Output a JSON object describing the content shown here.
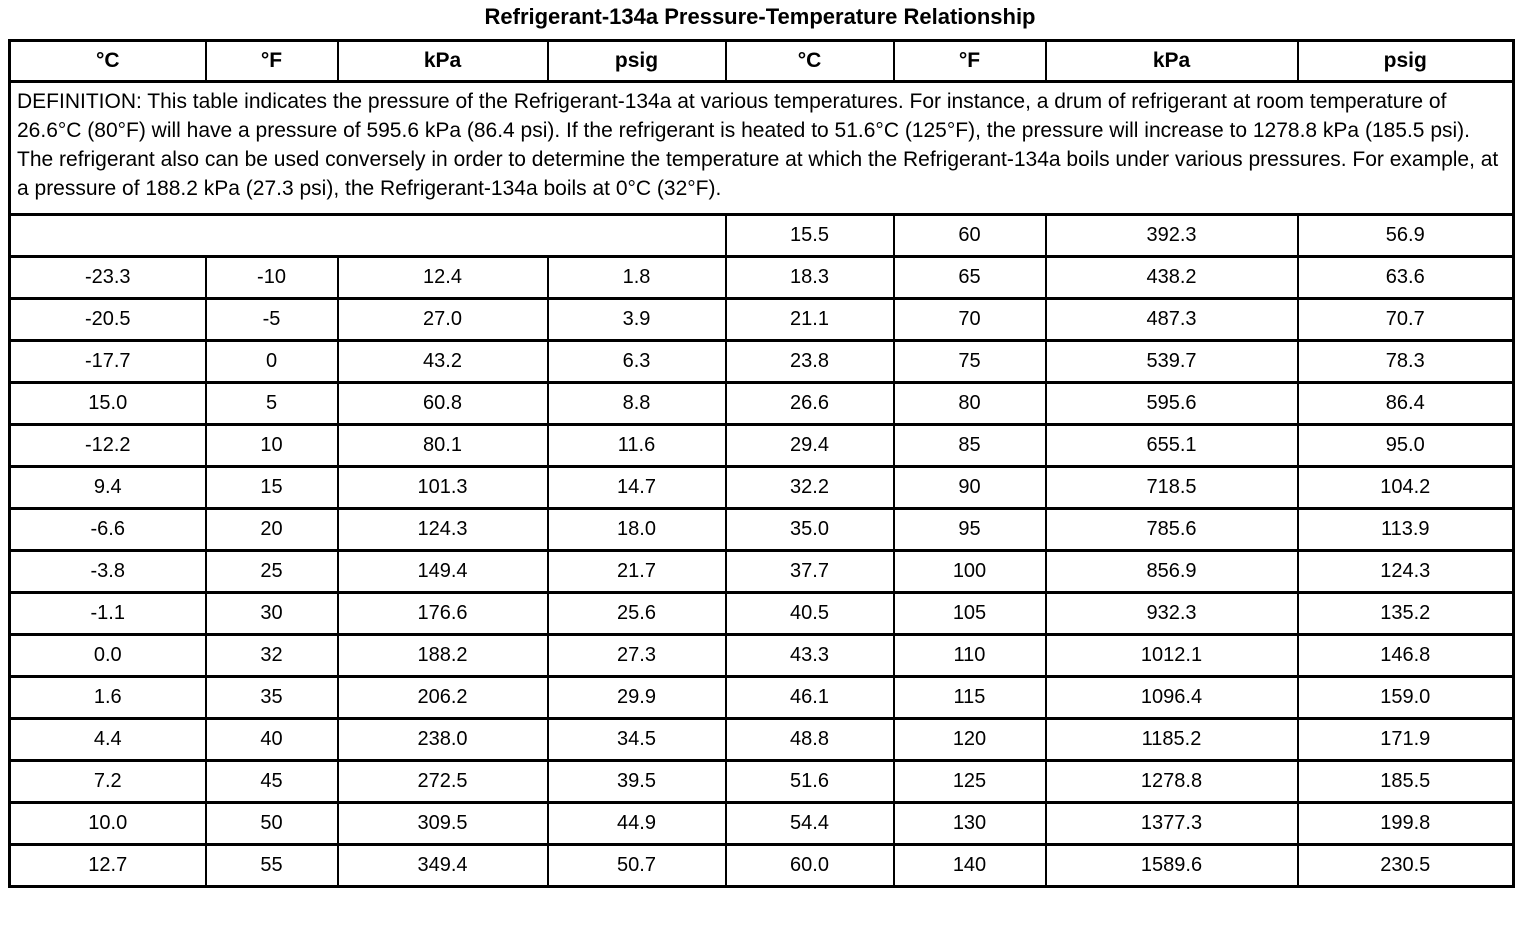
{
  "page": {
    "title": "Refrigerant-134a Pressure-Temperature Relationship"
  },
  "table": {
    "column_headers": [
      "°C",
      "°F",
      "kPa",
      "psig",
      "°C",
      "°F",
      "kPa",
      "psig"
    ],
    "definition": "DEFINITION: This table indicates the pressure of the Refrigerant-134a at various temperatures. For instance, a drum of refrigerant at room temperature of 26.6°C (80°F) will have a pressure of 595.6 kPa (86.4 psi). If the refrigerant is heated to 51.6°C (125°F), the pressure will increase to 1278.8 kPa (185.5 psi). The refrigerant also can be used conversely in order to determine the temperature at which the Refrigerant-134a boils under various pressures. For example, at a pressure of 188.2 kPa (27.3 psi), the Refrigerant-134a boils at 0°C (32°F).",
    "spanned_row": {
      "right": [
        "15.5",
        "60",
        "392.3",
        "56.9"
      ]
    },
    "rows": [
      [
        "-23.3",
        "-10",
        "12.4",
        "1.8",
        "18.3",
        "65",
        "438.2",
        "63.6"
      ],
      [
        "-20.5",
        "-5",
        "27.0",
        "3.9",
        "21.1",
        "70",
        "487.3",
        "70.7"
      ],
      [
        "-17.7",
        "0",
        "43.2",
        "6.3",
        "23.8",
        "75",
        "539.7",
        "78.3"
      ],
      [
        "15.0",
        "5",
        "60.8",
        "8.8",
        "26.6",
        "80",
        "595.6",
        "86.4"
      ],
      [
        "-12.2",
        "10",
        "80.1",
        "11.6",
        "29.4",
        "85",
        "655.1",
        "95.0"
      ],
      [
        "9.4",
        "15",
        "101.3",
        "14.7",
        "32.2",
        "90",
        "718.5",
        "104.2"
      ],
      [
        "-6.6",
        "20",
        "124.3",
        "18.0",
        "35.0",
        "95",
        "785.6",
        "113.9"
      ],
      [
        "-3.8",
        "25",
        "149.4",
        "21.7",
        "37.7",
        "100",
        "856.9",
        "124.3"
      ],
      [
        "-1.1",
        "30",
        "176.6",
        "25.6",
        "40.5",
        "105",
        "932.3",
        "135.2"
      ],
      [
        "0.0",
        "32",
        "188.2",
        "27.3",
        "43.3",
        "110",
        "1012.1",
        "146.8"
      ],
      [
        "1.6",
        "35",
        "206.2",
        "29.9",
        "46.1",
        "115",
        "1096.4",
        "159.0"
      ],
      [
        "4.4",
        "40",
        "238.0",
        "34.5",
        "48.8",
        "120",
        "1185.2",
        "171.9"
      ],
      [
        "7.2",
        "45",
        "272.5",
        "39.5",
        "51.6",
        "125",
        "1278.8",
        "185.5"
      ],
      [
        "10.0",
        "50",
        "309.5",
        "44.9",
        "54.4",
        "130",
        "1377.3",
        "199.8"
      ],
      [
        "12.7",
        "55",
        "349.4",
        "50.7",
        "60.0",
        "140",
        "1589.6",
        "230.5"
      ]
    ]
  },
  "chart_data": {
    "type": "table",
    "title": "Refrigerant-134a Pressure-Temperature Relationship",
    "columns": [
      "°C",
      "°F",
      "kPa",
      "psig"
    ],
    "records": [
      {
        "c": -23.3,
        "f": -10,
        "kpa": 12.4,
        "psig": 1.8
      },
      {
        "c": -20.5,
        "f": -5,
        "kpa": 27.0,
        "psig": 3.9
      },
      {
        "c": -17.7,
        "f": 0,
        "kpa": 43.2,
        "psig": 6.3
      },
      {
        "c": 15.0,
        "f": 5,
        "kpa": 60.8,
        "psig": 8.8
      },
      {
        "c": -12.2,
        "f": 10,
        "kpa": 80.1,
        "psig": 11.6
      },
      {
        "c": 9.4,
        "f": 15,
        "kpa": 101.3,
        "psig": 14.7
      },
      {
        "c": -6.6,
        "f": 20,
        "kpa": 124.3,
        "psig": 18.0
      },
      {
        "c": -3.8,
        "f": 25,
        "kpa": 149.4,
        "psig": 21.7
      },
      {
        "c": -1.1,
        "f": 30,
        "kpa": 176.6,
        "psig": 25.6
      },
      {
        "c": 0.0,
        "f": 32,
        "kpa": 188.2,
        "psig": 27.3
      },
      {
        "c": 1.6,
        "f": 35,
        "kpa": 206.2,
        "psig": 29.9
      },
      {
        "c": 4.4,
        "f": 40,
        "kpa": 238.0,
        "psig": 34.5
      },
      {
        "c": 7.2,
        "f": 45,
        "kpa": 272.5,
        "psig": 39.5
      },
      {
        "c": 10.0,
        "f": 50,
        "kpa": 309.5,
        "psig": 44.9
      },
      {
        "c": 12.7,
        "f": 55,
        "kpa": 349.4,
        "psig": 50.7
      },
      {
        "c": 15.5,
        "f": 60,
        "kpa": 392.3,
        "psig": 56.9
      },
      {
        "c": 18.3,
        "f": 65,
        "kpa": 438.2,
        "psig": 63.6
      },
      {
        "c": 21.1,
        "f": 70,
        "kpa": 487.3,
        "psig": 70.7
      },
      {
        "c": 23.8,
        "f": 75,
        "kpa": 539.7,
        "psig": 78.3
      },
      {
        "c": 26.6,
        "f": 80,
        "kpa": 595.6,
        "psig": 86.4
      },
      {
        "c": 29.4,
        "f": 85,
        "kpa": 655.1,
        "psig": 95.0
      },
      {
        "c": 32.2,
        "f": 90,
        "kpa": 718.5,
        "psig": 104.2
      },
      {
        "c": 35.0,
        "f": 95,
        "kpa": 785.6,
        "psig": 113.9
      },
      {
        "c": 37.7,
        "f": 100,
        "kpa": 856.9,
        "psig": 124.3
      },
      {
        "c": 40.5,
        "f": 105,
        "kpa": 932.3,
        "psig": 135.2
      },
      {
        "c": 43.3,
        "f": 110,
        "kpa": 1012.1,
        "psig": 146.8
      },
      {
        "c": 46.1,
        "f": 115,
        "kpa": 1096.4,
        "psig": 159.0
      },
      {
        "c": 48.8,
        "f": 120,
        "kpa": 1185.2,
        "psig": 171.9
      },
      {
        "c": 51.6,
        "f": 125,
        "kpa": 1278.8,
        "psig": 185.5
      },
      {
        "c": 54.4,
        "f": 130,
        "kpa": 1377.3,
        "psig": 199.8
      },
      {
        "c": 60.0,
        "f": 140,
        "kpa": 1589.6,
        "psig": 230.5
      }
    ]
  }
}
